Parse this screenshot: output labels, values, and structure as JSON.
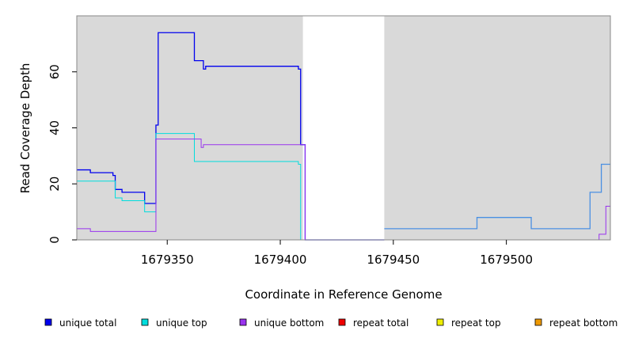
{
  "chart_data": {
    "type": "line",
    "xlabel": "Coordinate in Reference Genome",
    "ylabel": "Read Coverage Depth",
    "xlim": [
      1679310,
      1679546
    ],
    "ylim": [
      0,
      80
    ],
    "x_ticks": [
      1679350,
      1679400,
      1679450,
      1679500
    ],
    "x_tick_labels": [
      "1679350",
      "1679400",
      "1679450",
      "1679500"
    ],
    "y_ticks": [
      0,
      20,
      40,
      60
    ],
    "y_tick_labels": [
      "0",
      "20",
      "40",
      "60"
    ],
    "shaded_regions": [
      {
        "x": [
          1679310,
          1679410
        ],
        "color": "#d9d9d9"
      },
      {
        "x": [
          1679446,
          1679546
        ],
        "color": "#d9d9d9"
      }
    ],
    "legend_position": "bottom",
    "series": [
      {
        "name": "unique total",
        "color": "#0000ee",
        "style": "step",
        "width": 1.3,
        "points": [
          [
            1679310,
            25
          ],
          [
            1679316,
            24
          ],
          [
            1679326,
            23
          ],
          [
            1679327,
            18
          ],
          [
            1679330,
            17
          ],
          [
            1679340,
            13
          ],
          [
            1679345,
            41
          ],
          [
            1679346,
            74
          ],
          [
            1679362,
            64
          ],
          [
            1679366,
            61
          ],
          [
            1679367,
            62
          ],
          [
            1679408,
            61
          ],
          [
            1679409,
            34
          ],
          [
            1679411,
            0
          ],
          [
            1679446,
            0
          ]
        ]
      },
      {
        "name": "unique top",
        "color": "#00dddd",
        "style": "step",
        "width": 1,
        "points": [
          [
            1679310,
            21
          ],
          [
            1679327,
            15
          ],
          [
            1679330,
            14
          ],
          [
            1679340,
            10
          ],
          [
            1679345,
            38
          ],
          [
            1679362,
            28
          ],
          [
            1679408,
            27
          ],
          [
            1679409,
            0
          ],
          [
            1679411,
            0
          ]
        ]
      },
      {
        "name": "unique bottom",
        "color": "#9933ee",
        "style": "step",
        "width": 1,
        "points": [
          [
            1679310,
            4
          ],
          [
            1679316,
            3
          ],
          [
            1679345,
            36
          ],
          [
            1679365,
            33
          ],
          [
            1679366,
            34
          ],
          [
            1679411,
            0
          ],
          [
            1679446,
            0
          ],
          [
            1679537,
            0
          ],
          [
            1679541,
            2
          ],
          [
            1679544,
            12
          ],
          [
            1679546,
            12
          ]
        ]
      },
      {
        "name": "repeat total",
        "color": "#ee0000",
        "style": "step",
        "width": 1,
        "points": [
          [
            1679446,
            0
          ],
          [
            1679546,
            0
          ]
        ]
      },
      {
        "name": "repeat top",
        "color": "#eeee00",
        "style": "step",
        "width": 1,
        "points": [
          [
            1679310,
            0
          ],
          [
            1679411,
            0
          ]
        ]
      },
      {
        "name": "repeat bottom",
        "color": "#ee9900",
        "style": "step",
        "width": 1,
        "points": [
          [
            1679310,
            0
          ],
          [
            1679409,
            0
          ]
        ]
      },
      {
        "name": "",
        "color": "#4a90e2",
        "style": "step",
        "width": 1.3,
        "points": [
          [
            1679446,
            4
          ],
          [
            1679487,
            8
          ],
          [
            1679511,
            4
          ],
          [
            1679537,
            17
          ],
          [
            1679542,
            27
          ],
          [
            1679546,
            27
          ]
        ]
      }
    ]
  },
  "legend": {
    "items": [
      {
        "label": "unique total",
        "color": "#0000ee"
      },
      {
        "label": "unique top",
        "color": "#00dddd"
      },
      {
        "label": "unique bottom",
        "color": "#9933ee"
      },
      {
        "label": "repeat total",
        "color": "#ee0000"
      },
      {
        "label": "repeat top",
        "color": "#eeee00"
      },
      {
        "label": "repeat bottom",
        "color": "#ee9900"
      }
    ]
  }
}
